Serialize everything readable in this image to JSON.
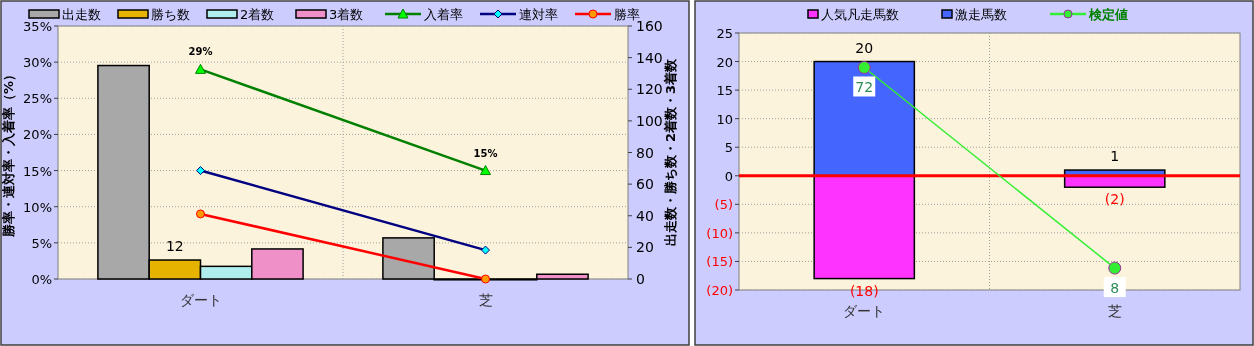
{
  "chart_data": [
    {
      "type": "bar",
      "categories": [
        "ダート",
        "芝"
      ],
      "series": [
        {
          "name": "出走数",
          "axis": "y2",
          "color": "#a8a8a8",
          "values": [
            135,
            26
          ]
        },
        {
          "name": "勝ち数",
          "axis": "y2",
          "color": "#e6b400",
          "values": [
            12,
            0
          ],
          "value_labels": [
            "12",
            null
          ]
        },
        {
          "name": "2着数",
          "axis": "y2",
          "color": "#b0eeee",
          "values": [
            8,
            0
          ]
        },
        {
          "name": "3着数",
          "axis": "y2",
          "color": "#f090c8",
          "values": [
            19,
            3
          ]
        },
        {
          "name": "入着率",
          "type": "line",
          "color": "#008000",
          "marker": "triangle",
          "colors": [
            "#00ff00",
            "#00ff00"
          ],
          "values": [
            29,
            15
          ],
          "value_labels": [
            "29%",
            "15%"
          ]
        },
        {
          "name": "連対率",
          "type": "line",
          "color": "#000080",
          "marker": "diamond",
          "colors": [
            "#00ffff",
            "#00ffff"
          ],
          "values": [
            15,
            4
          ]
        },
        {
          "name": "勝率",
          "type": "line",
          "color": "#ff0000",
          "marker": "circle",
          "colors": [
            "#ff9900",
            "#ff9900"
          ],
          "values": [
            9,
            0
          ]
        }
      ],
      "ylim": [
        0,
        35
      ],
      "yticks": [
        {
          "value": 0,
          "label": "0%"
        },
        {
          "value": 5,
          "label": "5%"
        },
        {
          "value": 10,
          "label": "10%"
        },
        {
          "value": 15,
          "label": "15%"
        },
        {
          "value": 20,
          "label": "20%"
        },
        {
          "value": 25,
          "label": "25%"
        },
        {
          "value": 30,
          "label": "30%"
        },
        {
          "value": 35,
          "label": "35%"
        }
      ],
      "y2lim": [
        0,
        160
      ],
      "y2ticks": [
        0,
        20,
        40,
        60,
        80,
        100,
        120,
        140,
        160
      ],
      "ylabel": "勝率・連対率・入着率（%）",
      "y2label": "出走数・勝ち数・2着数・3着数",
      "legend": "top",
      "grid": true
    },
    {
      "type": "bar",
      "stacked": true,
      "categories": [
        "ダート",
        "芝"
      ],
      "series": [
        {
          "name": "人気凡走馬数",
          "color": "#ff33ff",
          "values": [
            -18,
            -2
          ],
          "value_labels": [
            "(18)",
            "(2)"
          ]
        },
        {
          "name": "激走馬数",
          "color": "#4466ff",
          "values": [
            20,
            1
          ],
          "value_labels": [
            "20",
            "1"
          ]
        },
        {
          "name": "検定値",
          "type": "line",
          "axis": "y2",
          "color": "#33ee33",
          "marker": "circle",
          "colors": [
            "#33ee33",
            "#33ee33"
          ],
          "values": [
            72,
            8
          ],
          "value_labels": [
            "72",
            "8"
          ]
        }
      ],
      "ylim": [
        -20,
        25
      ],
      "yticks": [
        {
          "value": -20,
          "label": "(20)"
        },
        {
          "value": -15,
          "label": "(15)"
        },
        {
          "value": -10,
          "label": "(10)"
        },
        {
          "value": -5,
          "label": "(5)"
        },
        0,
        5,
        10,
        15,
        20,
        25
      ],
      "y2lim": [
        1,
        83
      ],
      "ref_lines": [
        {
          "axis": "y",
          "value": 0,
          "color": "#ff0000"
        }
      ],
      "legend": "top",
      "grid": true
    }
  ]
}
